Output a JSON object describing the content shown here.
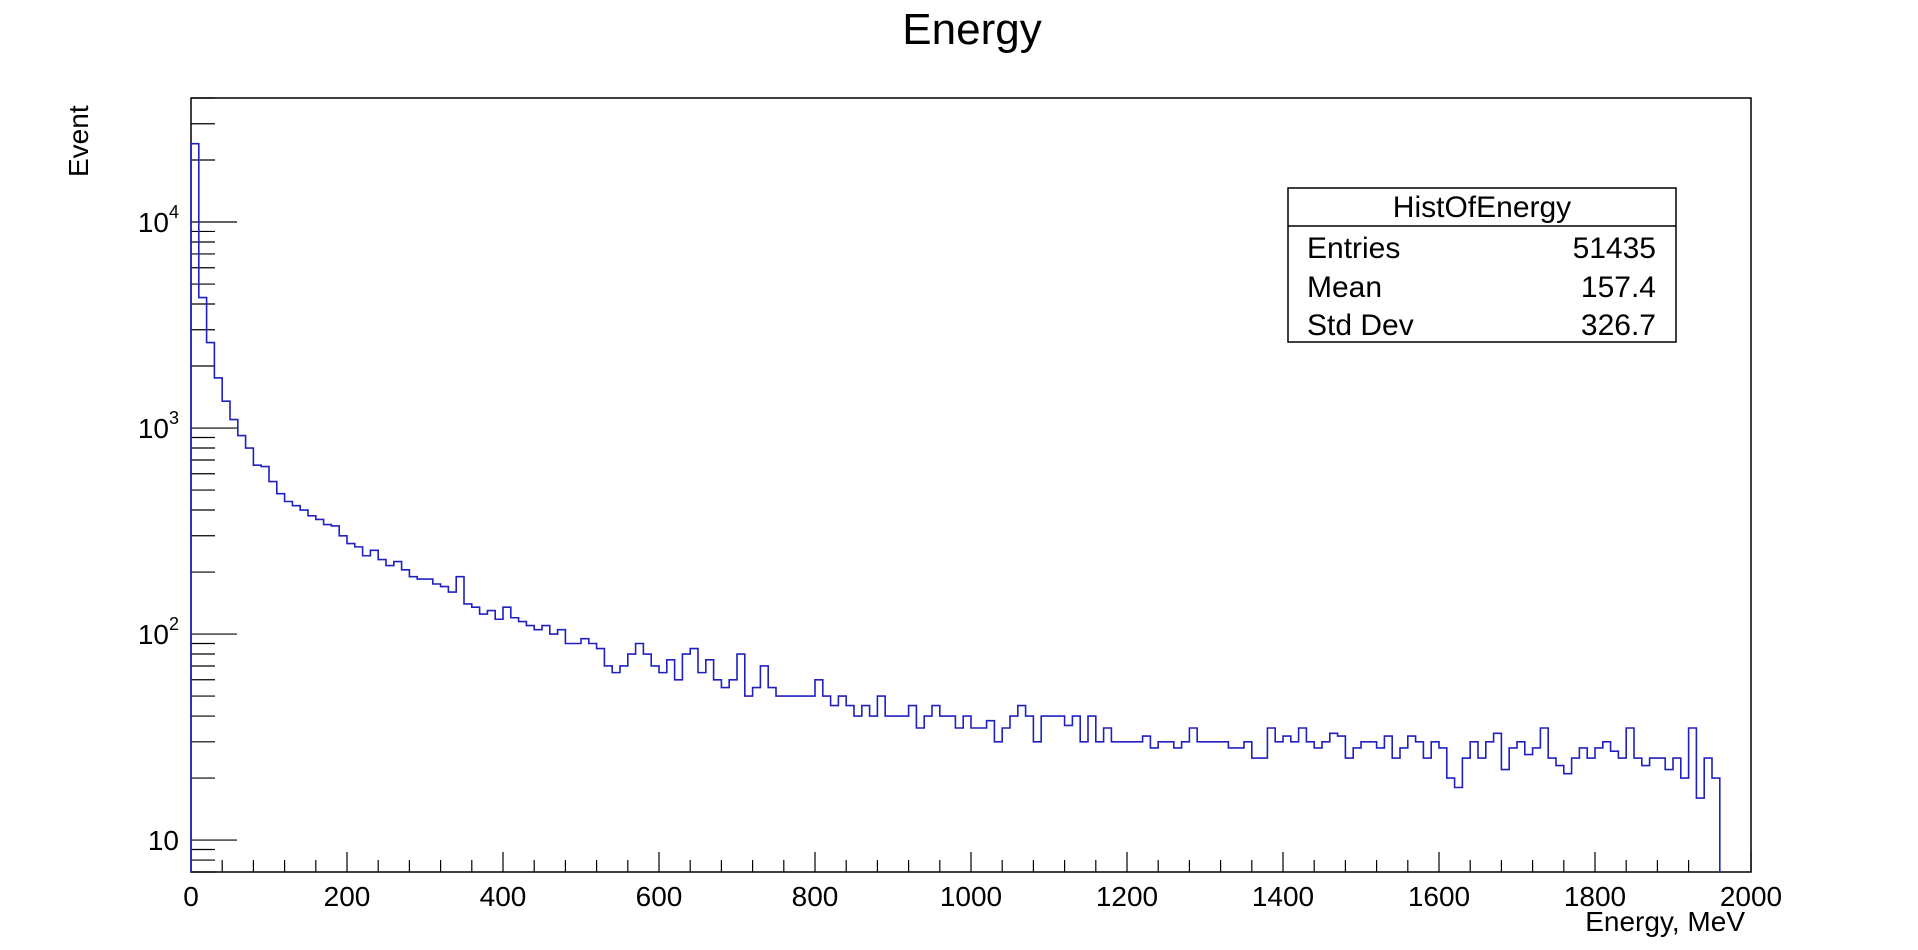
{
  "chart_data": {
    "type": "histogram",
    "title": "Energy",
    "xlabel": "Energy, MeV",
    "ylabel": "Event",
    "xlim": [
      0,
      2000
    ],
    "ylim": [
      7,
      40000
    ],
    "yscale": "log",
    "bin_width": 10,
    "x_ticks": [
      "0",
      "200",
      "400",
      "600",
      "800",
      "1000",
      "1200",
      "1400",
      "1600",
      "1800",
      "2000"
    ],
    "line_color": "#2020c0",
    "grid": false,
    "stats_box": {
      "name": "HistOfEnergy",
      "placement": "top-right",
      "rows": [
        {
          "label": "Entries",
          "value": "51435"
        },
        {
          "label": "Mean",
          "value": "157.4"
        },
        {
          "label": "Std Dev",
          "value": "326.7"
        }
      ]
    },
    "series": [
      {
        "values": [
          24000,
          4300,
          2600,
          1750,
          1350,
          1100,
          920,
          800,
          660,
          650,
          550,
          480,
          440,
          420,
          400,
          375,
          360,
          340,
          335,
          300,
          275,
          265,
          240,
          255,
          230,
          215,
          225,
          205,
          190,
          185,
          185,
          175,
          170,
          160,
          190,
          140,
          135,
          125,
          130,
          118,
          135,
          120,
          115,
          110,
          105,
          110,
          100,
          105,
          90,
          90,
          95,
          90,
          85,
          70,
          65,
          70,
          80,
          90,
          80,
          70,
          65,
          75,
          60,
          80,
          85,
          65,
          75,
          60,
          55,
          60,
          80,
          50,
          55,
          70,
          55,
          50,
          50,
          50,
          50,
          50,
          60,
          50,
          45,
          50,
          45,
          40,
          45,
          40,
          50,
          40,
          40,
          40,
          45,
          35,
          40,
          45,
          40,
          40,
          35,
          40,
          35,
          35,
          38,
          30,
          35,
          40,
          45,
          40,
          30,
          40,
          40,
          40,
          36,
          40,
          30,
          40,
          30,
          35,
          30,
          30,
          30,
          30,
          32,
          28,
          30,
          30,
          28,
          30,
          35,
          30,
          30,
          30,
          30,
          28,
          28,
          30,
          25,
          25,
          35,
          30,
          32,
          30,
          35,
          30,
          28,
          30,
          33,
          32,
          25,
          28,
          30,
          30,
          28,
          32,
          25,
          28,
          32,
          30,
          25,
          30,
          28,
          20,
          18,
          25,
          30,
          25,
          30,
          33,
          22,
          28,
          30,
          26,
          28,
          35,
          25,
          23,
          21,
          25,
          28,
          25,
          28,
          30,
          27,
          25,
          35,
          25,
          23,
          25,
          25,
          22,
          25,
          20,
          35,
          16,
          25,
          20
        ]
      }
    ]
  }
}
